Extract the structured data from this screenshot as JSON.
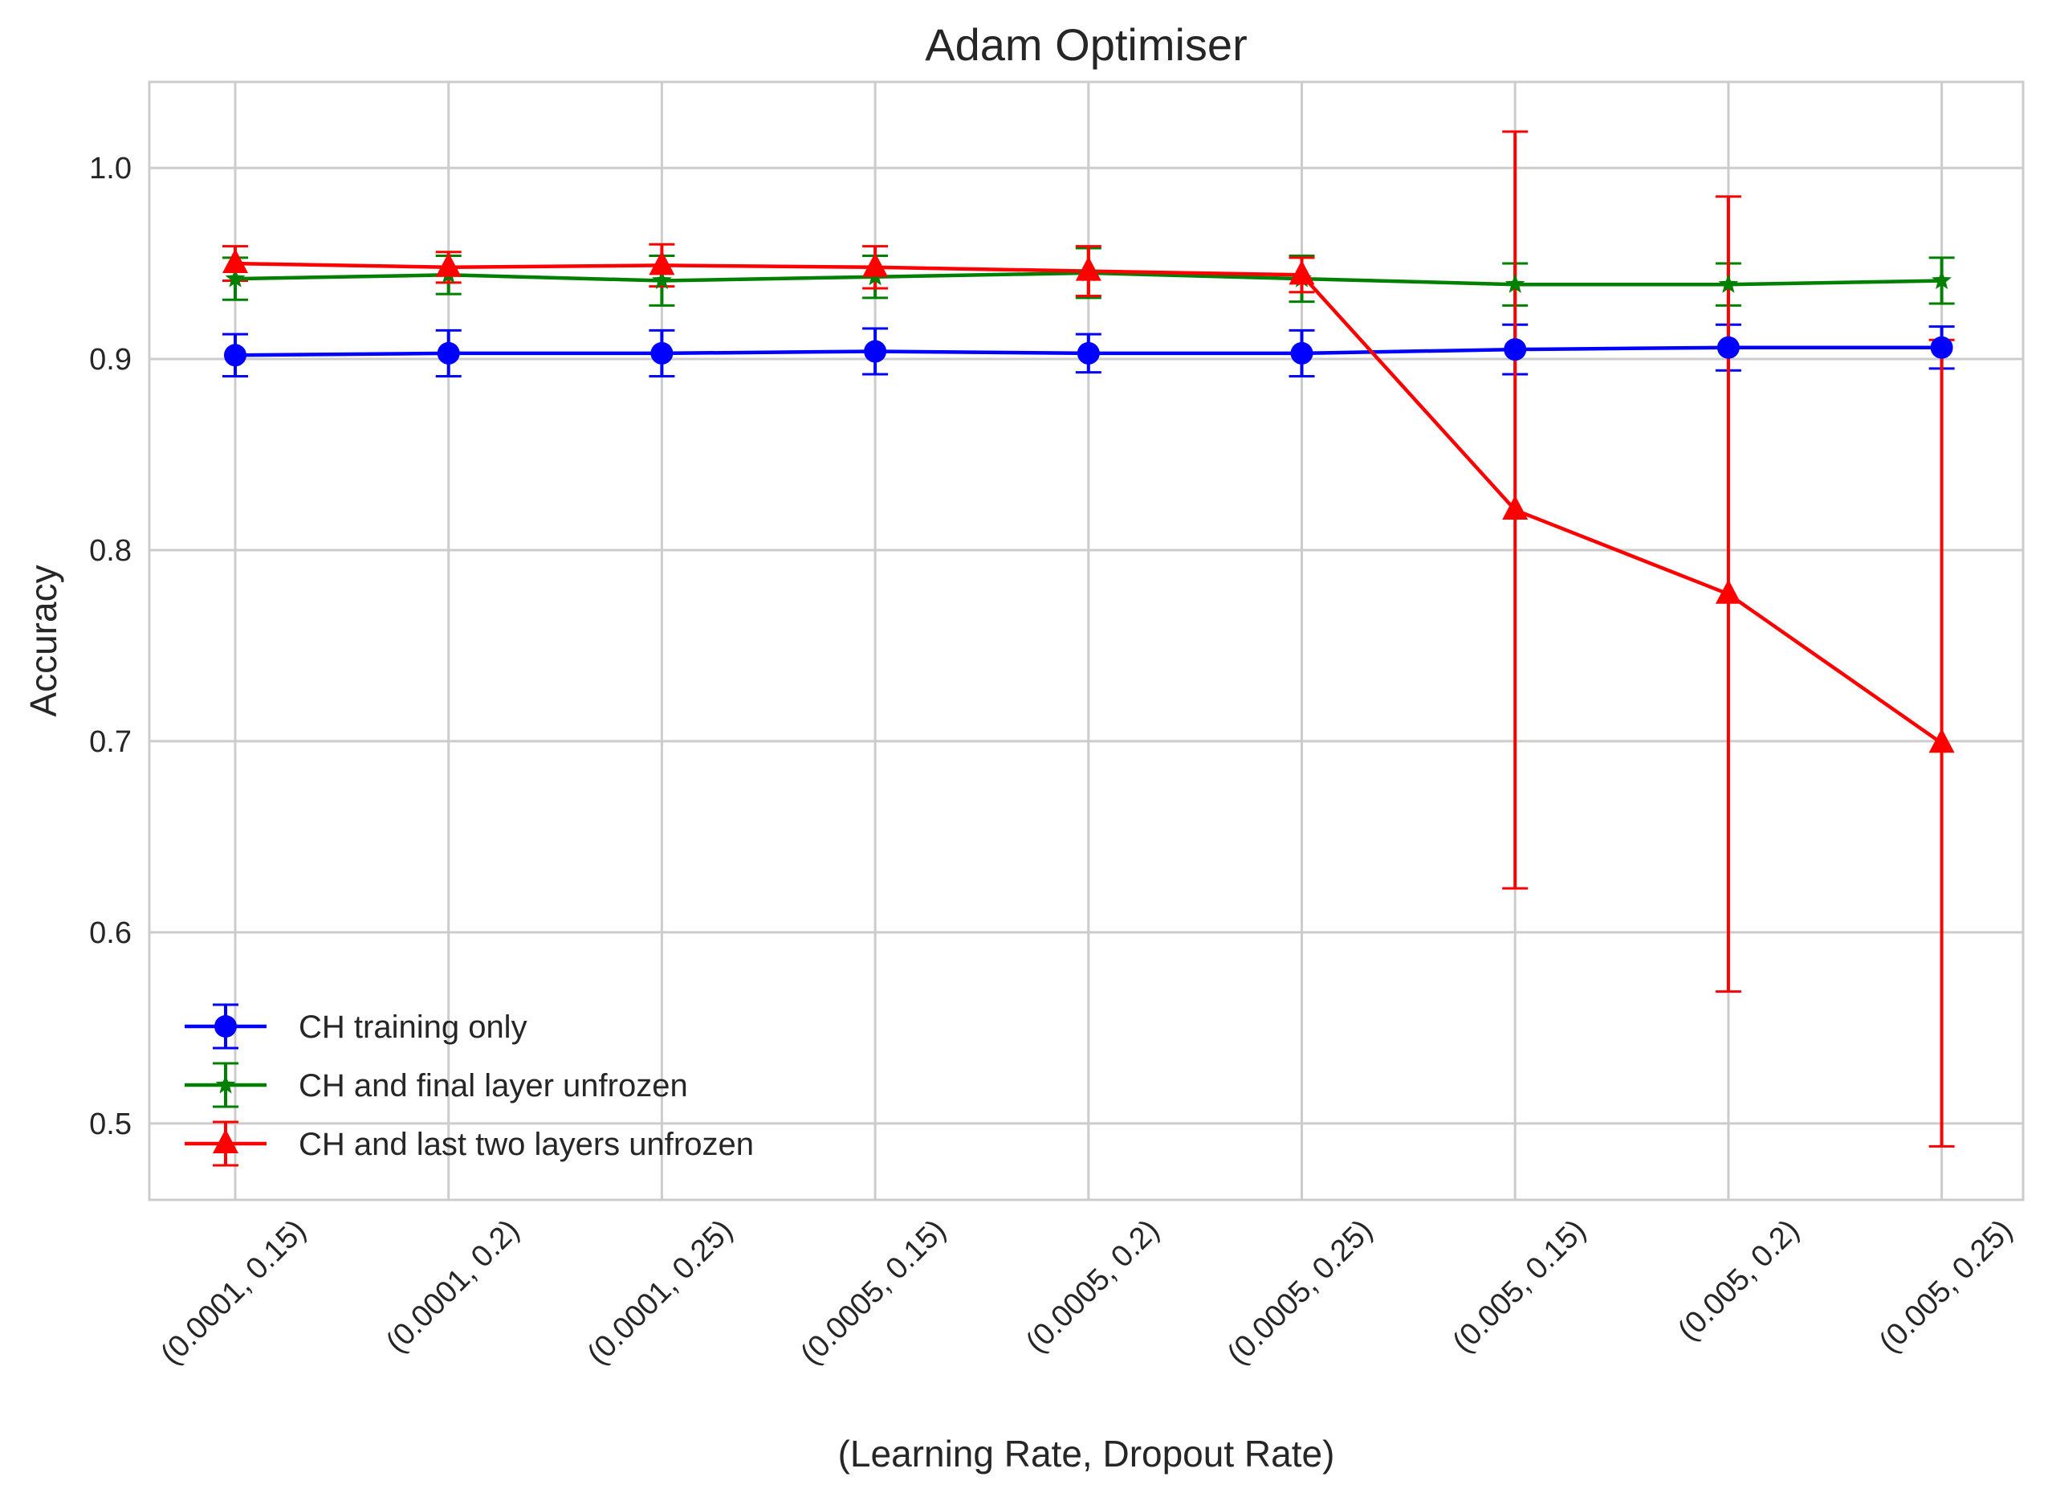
{
  "chart_data": {
    "type": "line",
    "title": "Adam Optimiser",
    "xlabel": "(Learning Rate, Dropout Rate)",
    "ylabel": "Accuracy",
    "categories": [
      "(0.0001, 0.15)",
      "(0.0001, 0.2)",
      "(0.0001, 0.25)",
      "(0.0005, 0.15)",
      "(0.0005, 0.2)",
      "(0.0005, 0.25)",
      "(0.005, 0.15)",
      "(0.005, 0.2)",
      "(0.005, 0.25)"
    ],
    "ylim": [
      0.46,
      1.045
    ],
    "yticks": [
      "0.5",
      "0.6",
      "0.7",
      "0.8",
      "0.9",
      "1.0"
    ],
    "grid": true,
    "legend_position": "lower-left",
    "series": [
      {
        "name": "CH training only",
        "color": "#0000ff",
        "marker": "circle",
        "values": [
          0.902,
          0.903,
          0.903,
          0.904,
          0.903,
          0.903,
          0.905,
          0.906,
          0.906
        ],
        "errors": [
          0.011,
          0.012,
          0.012,
          0.012,
          0.01,
          0.012,
          0.013,
          0.012,
          0.011
        ]
      },
      {
        "name": "CH and final layer unfrozen",
        "color": "#008000",
        "marker": "star",
        "values": [
          0.942,
          0.944,
          0.941,
          0.943,
          0.945,
          0.942,
          0.939,
          0.939,
          0.941
        ],
        "errors": [
          0.011,
          0.01,
          0.013,
          0.011,
          0.013,
          0.012,
          0.011,
          0.011,
          0.012
        ]
      },
      {
        "name": "CH and last two layers unfrozen",
        "color": "#ff0000",
        "marker": "triangle",
        "values": [
          0.95,
          0.948,
          0.949,
          0.948,
          0.946,
          0.944,
          0.821,
          0.777,
          0.699
        ],
        "errors": [
          0.009,
          0.008,
          0.011,
          0.011,
          0.013,
          0.009,
          0.198,
          0.208,
          0.211
        ]
      }
    ]
  }
}
